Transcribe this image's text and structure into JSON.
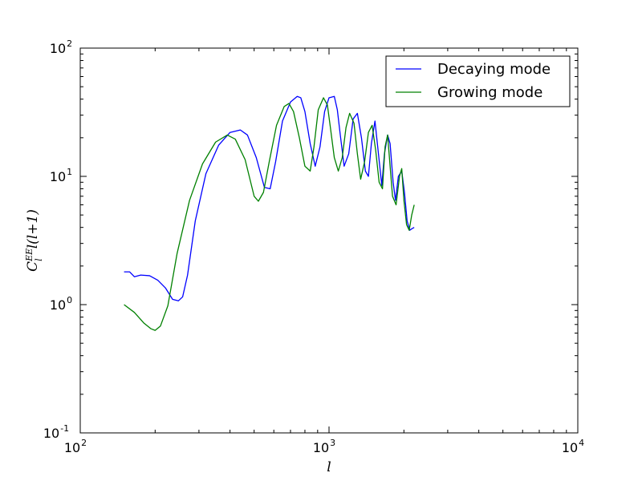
{
  "chart_data": {
    "type": "line",
    "xlabel": "l",
    "ylabel": {
      "main": "C",
      "superscript": "EE",
      "subscript": "l",
      "rest": "l(l+1)"
    },
    "xscale": "log",
    "yscale": "log",
    "xlim": [
      100,
      10000
    ],
    "ylim": [
      0.1,
      100
    ],
    "xticks": [
      {
        "value": 100,
        "base": "10",
        "exp": "2"
      },
      {
        "value": 1000,
        "base": "10",
        "exp": "3"
      },
      {
        "value": 10000,
        "base": "10",
        "exp": "4"
      }
    ],
    "yticks": [
      {
        "value": 0.1,
        "base": "10",
        "exp": "-1"
      },
      {
        "value": 1,
        "base": "10",
        "exp": "0"
      },
      {
        "value": 10,
        "base": "10",
        "exp": "1"
      },
      {
        "value": 100,
        "base": "10",
        "exp": "2"
      }
    ],
    "grid": false,
    "legend": {
      "position": "top-right"
    },
    "series": [
      {
        "name": "Decaying mode",
        "color": "#0000ff",
        "x": [
          150,
          158,
          165,
          175,
          190,
          205,
          220,
          235,
          248,
          258,
          270,
          290,
          320,
          360,
          400,
          440,
          470,
          510,
          550,
          580,
          610,
          650,
          700,
          745,
          770,
          800,
          840,
          880,
          920,
          960,
          1000,
          1050,
          1080,
          1110,
          1150,
          1200,
          1250,
          1300,
          1350,
          1400,
          1440,
          1480,
          1530,
          1580,
          1630,
          1670,
          1720,
          1760,
          1810,
          1850,
          1900,
          1960,
          2010,
          2060,
          2110,
          2150,
          2200
        ],
        "y": [
          1.8,
          1.8,
          1.65,
          1.7,
          1.68,
          1.55,
          1.35,
          1.1,
          1.07,
          1.15,
          1.7,
          4.5,
          10.5,
          17.5,
          22.0,
          23.0,
          21.0,
          14.0,
          8.2,
          8.0,
          13.0,
          27.0,
          38.0,
          42.0,
          41.0,
          32.0,
          18.0,
          12.0,
          17.0,
          32.0,
          41.0,
          42.0,
          33.0,
          21.0,
          12.0,
          15.0,
          28.0,
          31.0,
          20.0,
          11.0,
          10.0,
          18.0,
          27.0,
          15.0,
          8.5,
          15.0,
          21.0,
          18.0,
          9.0,
          6.5,
          10.0,
          11.0,
          7.5,
          4.5,
          3.8,
          3.9,
          4.0
        ]
      },
      {
        "name": "Growing mode",
        "color": "#008000",
        "x": [
          150,
          165,
          180,
          192,
          200,
          210,
          225,
          245,
          275,
          310,
          350,
          390,
          420,
          460,
          500,
          520,
          545,
          575,
          615,
          660,
          690,
          720,
          760,
          800,
          840,
          870,
          905,
          950,
          985,
          1010,
          1050,
          1090,
          1130,
          1170,
          1210,
          1260,
          1300,
          1340,
          1390,
          1440,
          1490,
          1540,
          1590,
          1640,
          1680,
          1720,
          1760,
          1800,
          1860,
          1920,
          1960,
          2000,
          2050,
          2100,
          2150,
          2200
        ],
        "y": [
          1.0,
          0.87,
          0.72,
          0.65,
          0.63,
          0.68,
          0.98,
          2.5,
          6.5,
          12.5,
          18.5,
          21.0,
          19.5,
          13.5,
          7.0,
          6.4,
          7.5,
          13.0,
          25.0,
          35.0,
          37.0,
          32.0,
          20.0,
          12.0,
          11.0,
          17.0,
          33.0,
          41.0,
          36.0,
          25.0,
          14.0,
          11.0,
          14.0,
          24.0,
          31.0,
          26.0,
          15.0,
          9.5,
          13.0,
          22.0,
          25.0,
          16.0,
          9.0,
          8.0,
          17.0,
          21.0,
          12.0,
          7.0,
          6.0,
          10.0,
          11.5,
          6.5,
          4.2,
          3.8,
          5.0,
          6.0
        ]
      }
    ]
  }
}
